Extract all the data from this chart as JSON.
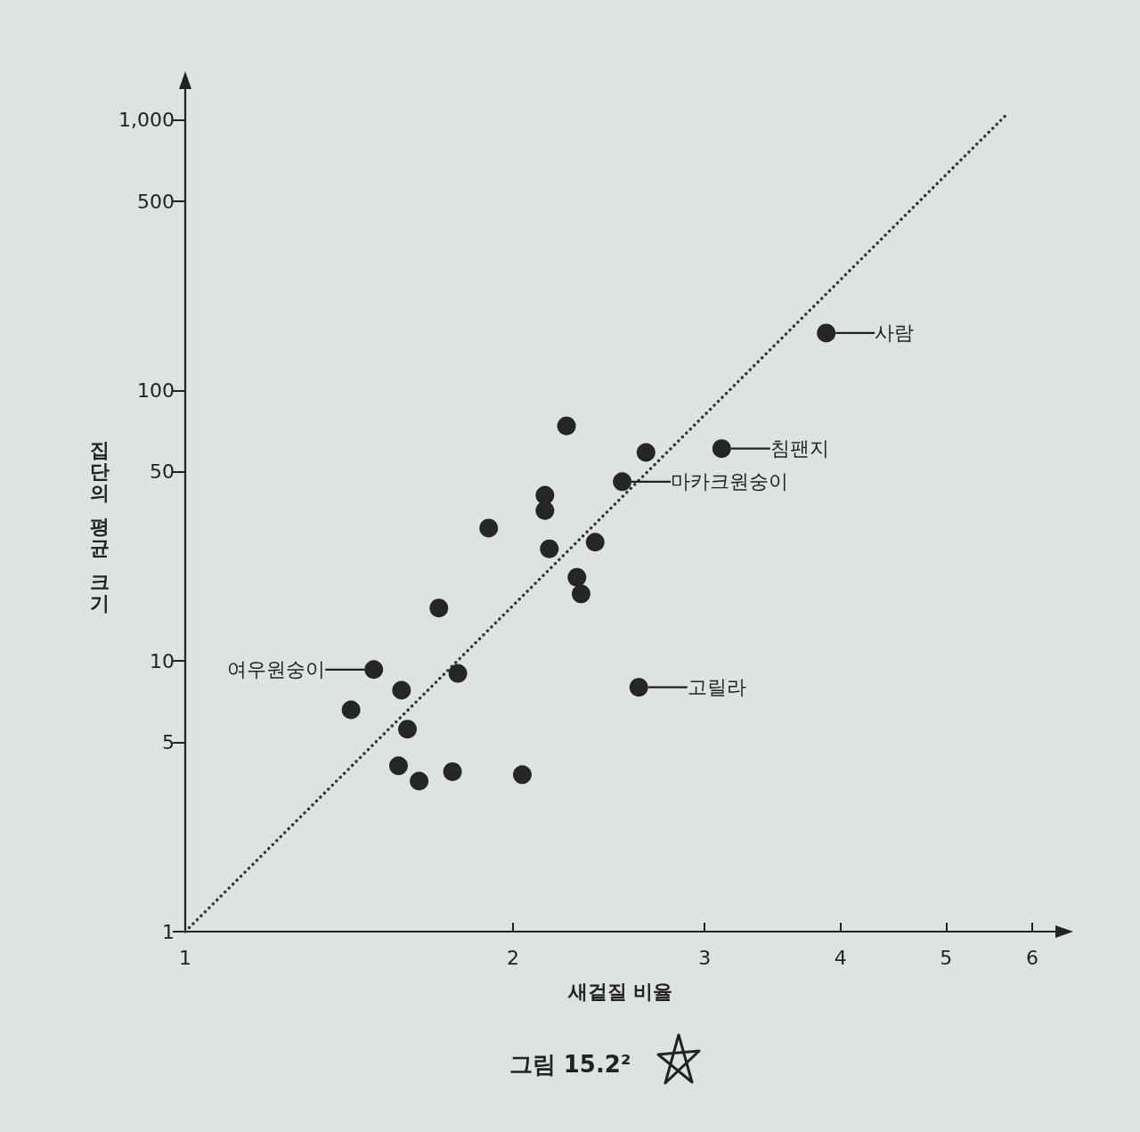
{
  "chart_data": {
    "type": "scatter",
    "xlabel": "새겉질 비율",
    "ylabel": "집단의 평균 크기",
    "log": "xy",
    "xlim": [
      1,
      6.3
    ],
    "xticks": [
      1,
      2,
      3,
      4,
      5,
      6
    ],
    "ylim": [
      1,
      1300
    ],
    "yticks": [
      1,
      5,
      10,
      50,
      100,
      500,
      {
        "value": 1000,
        "label": "1,000"
      }
    ],
    "marker": "circle",
    "series": [
      {
        "color": "#262626",
        "x": [
          1.42,
          1.49,
          1.58,
          1.6,
          1.57,
          1.64,
          1.71,
          1.76,
          1.78,
          1.9,
          2.04,
          2.14,
          2.14,
          2.16,
          2.24,
          2.29,
          2.31,
          2.38,
          2.52,
          2.65,
          2.61,
          3.11,
          3.88
        ],
        "values": [
          6.6,
          9.3,
          7.8,
          5.6,
          4.1,
          3.6,
          15.7,
          3.9,
          9,
          31,
          3.8,
          36,
          41,
          26,
          74,
          20.4,
          17.7,
          27.5,
          46,
          59,
          8,
          61,
          163
        ]
      },
      {
        "type": "line",
        "color": "#333333",
        "line_style": "dotted",
        "marker": "none",
        "x": [
          1,
          5.7
        ],
        "values": [
          1,
          1060
        ]
      }
    ],
    "annotations": [
      {
        "text": "사람",
        "x": 3.88,
        "y": 163
      },
      {
        "text": "침팬지",
        "x": 3.11,
        "y": 61
      },
      {
        "text": "마카크원숭이",
        "x": 2.52,
        "y": 46
      },
      {
        "text": "고릴라",
        "x": 2.61,
        "y": 8
      },
      {
        "text": "여우원숭이",
        "x": 1.49,
        "y": 9.3
      },
      "그림 15.2²"
    ]
  }
}
